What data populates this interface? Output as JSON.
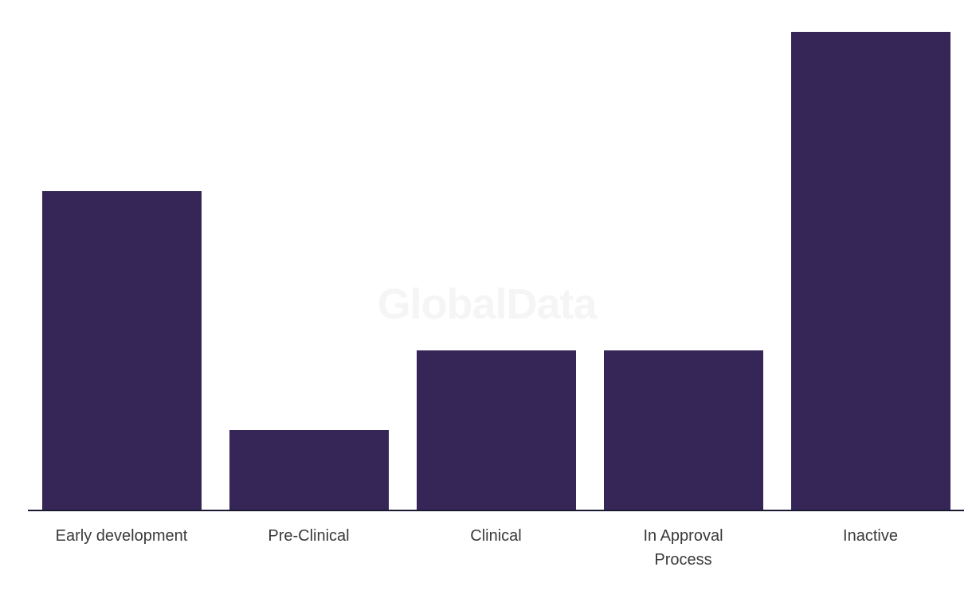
{
  "watermark_text": "GlobalData",
  "colors": {
    "background": "#ffffff",
    "bar": "#352657",
    "axis": "#191932",
    "label": "#3a3a3a",
    "watermark": "#f5f5f5"
  },
  "chart_data": {
    "type": "bar",
    "categories": [
      "Early development",
      "Pre-Clinical",
      "Clinical",
      "In Approval Process",
      "Inactive"
    ],
    "values": [
      4,
      1,
      2,
      2,
      6
    ],
    "x_labels_display": [
      "Early development",
      "Pre-Clinical",
      "Clinical",
      "In Approval\nProcess",
      "Inactive"
    ],
    "title": "",
    "xlabel": "",
    "ylabel": "",
    "ylim": [
      0,
      6.4
    ],
    "grid": false,
    "legend": false,
    "y_axis_visible": false,
    "x_axis_visible": true,
    "watermark": "GlobalData"
  }
}
